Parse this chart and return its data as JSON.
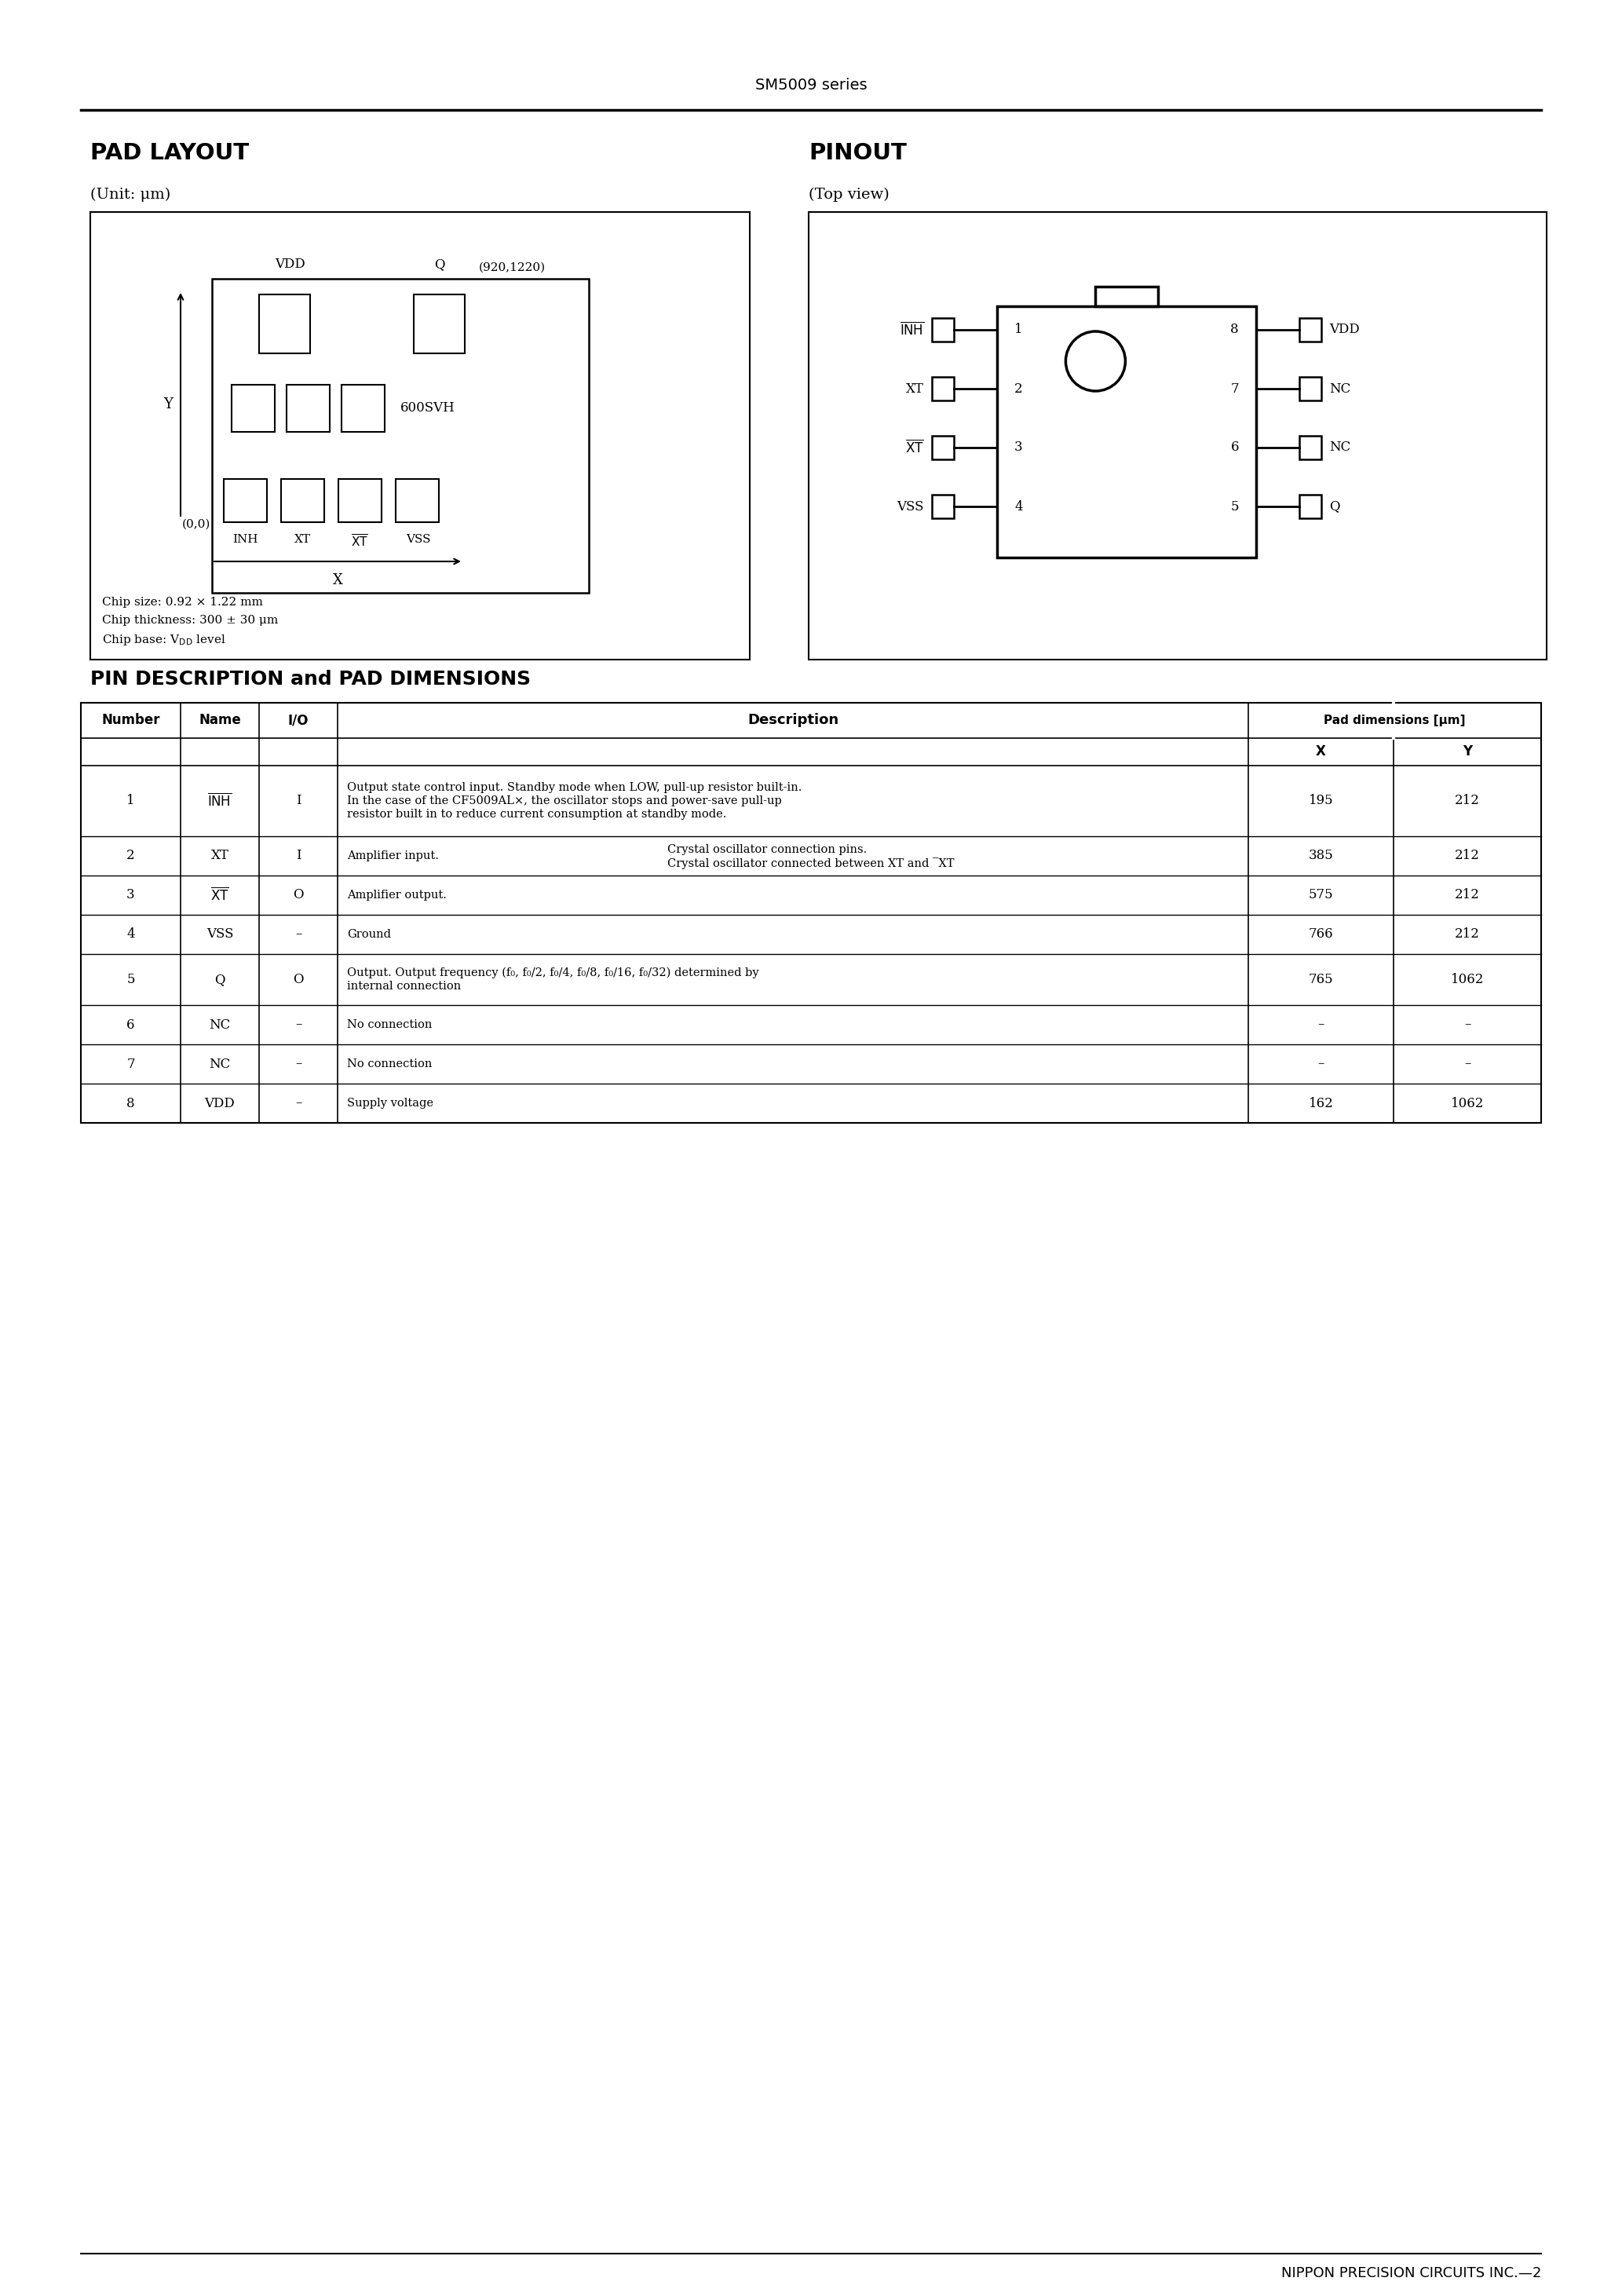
{
  "page_title": "SM5009 series",
  "bg_color": "#ffffff",
  "section1_title": "PAD LAYOUT",
  "section1_unit": "(Unit: μm)",
  "section2_title": "PINOUT",
  "section2_unit": "(Top view)",
  "pad_layout": {
    "chip_info1": "Chip size: 0.92 × 1.22 mm",
    "chip_info2": "Chip thickness: 300 ± 30 μm",
    "chip_info3": "Chip base: V°° level"
  },
  "pin_table": {
    "col_header_pad": "Pad dimensions [μm]",
    "rows": [
      {
        "num": "1",
        "name": "INH",
        "name_overbar": true,
        "io": "I",
        "desc1": "Output state control input. Standby mode when LOW, pull-up resistor built-in.",
        "desc2": "In the case of the CF5009AL×, the oscillator stops and power-save pull-up",
        "desc3": "resistor built in to reduce current consumption at standby mode.",
        "desc_col2": "",
        "x": "195",
        "y": "212"
      },
      {
        "num": "2",
        "name": "XT",
        "name_overbar": false,
        "io": "I",
        "desc1": "Amplifier input.",
        "desc2": "",
        "desc3": "",
        "desc_col2": "Crystal oscillator connection pins.",
        "desc_col2b": "Crystal oscillator connected between XT and ‾XT",
        "x": "385",
        "y": "212"
      },
      {
        "num": "3",
        "name": "XT",
        "name_overbar": true,
        "io": "O",
        "desc1": "Amplifier output.",
        "desc2": "",
        "desc3": "",
        "desc_col2": "",
        "x": "575",
        "y": "212"
      },
      {
        "num": "4",
        "name": "VSS",
        "name_overbar": false,
        "io": "–",
        "desc1": "Ground",
        "desc2": "",
        "desc3": "",
        "desc_col2": "",
        "x": "766",
        "y": "212"
      },
      {
        "num": "5",
        "name": "Q",
        "name_overbar": false,
        "io": "O",
        "desc1": "Output. Output frequency (f₀, f₀/2, f₀/4, f₀/8, f₀/16, f₀/32) determined by",
        "desc2": "internal connection",
        "desc3": "",
        "desc_col2": "",
        "x": "765",
        "y": "1062"
      },
      {
        "num": "6",
        "name": "NC",
        "name_overbar": false,
        "io": "–",
        "desc1": "No connection",
        "desc2": "",
        "desc3": "",
        "desc_col2": "",
        "x": "–",
        "y": "–"
      },
      {
        "num": "7",
        "name": "NC",
        "name_overbar": false,
        "io": "–",
        "desc1": "No connection",
        "desc2": "",
        "desc3": "",
        "desc_col2": "",
        "x": "–",
        "y": "–"
      },
      {
        "num": "8",
        "name": "VDD",
        "name_overbar": false,
        "io": "–",
        "desc1": "Supply voltage",
        "desc2": "",
        "desc3": "",
        "desc_col2": "",
        "x": "162",
        "y": "1062"
      }
    ]
  },
  "footer_text": "NIPPON PRECISION CIRCUITS INC.—2",
  "section3_title": "PIN DESCRIPTION and PAD DIMENSIONS"
}
